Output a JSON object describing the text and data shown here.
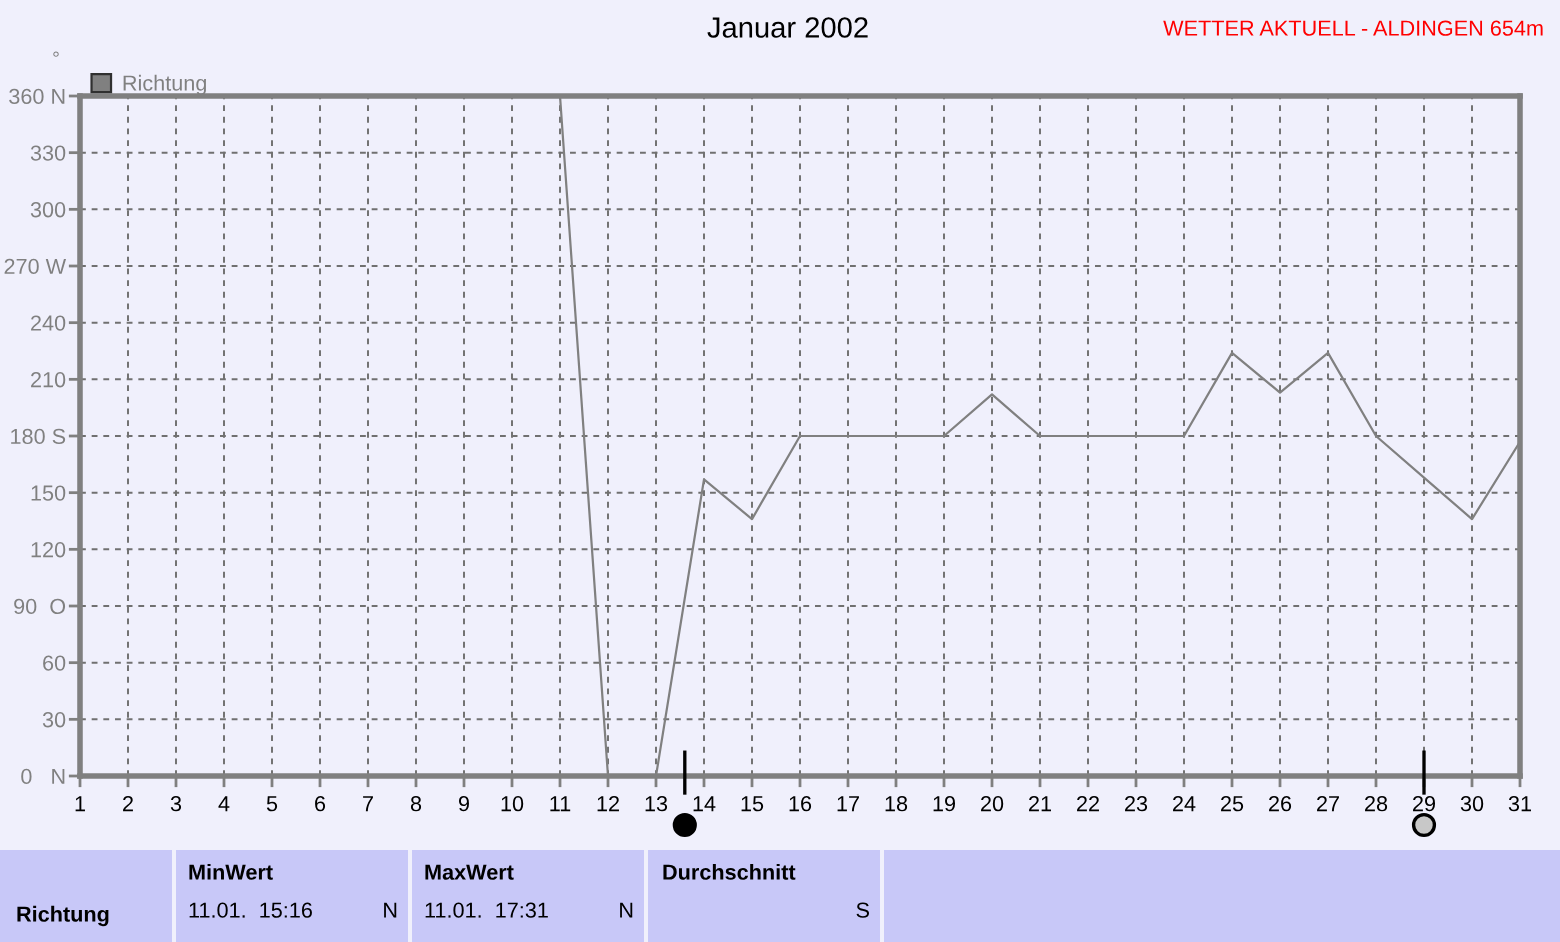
{
  "chart_data": {
    "type": "line",
    "title": "Januar 2002",
    "ylabel": "°",
    "annotations": [
      "WETTER AKTUELL - ALDINGEN 654m",
      "Richtung",
      "MinWert",
      "11.01.  15:16",
      "N",
      "MaxWert",
      "11.01.  17:31",
      "N",
      "Durchschnitt",
      "S"
    ],
    "x": [
      11,
      12,
      13,
      14,
      15,
      16,
      17,
      18,
      19,
      20,
      21,
      22,
      23,
      24,
      25,
      26,
      27,
      28,
      29,
      30,
      31
    ],
    "series": [
      {
        "name": "Richtung",
        "color": "#808080",
        "values": [
          360,
          0,
          0,
          157,
          136,
          180,
          180,
          180,
          180,
          202,
          180,
          180,
          180,
          180,
          224,
          203,
          224,
          180,
          158,
          136,
          177
        ]
      }
    ],
    "xlim": [
      1,
      31
    ],
    "xticks": [
      1,
      2,
      3,
      4,
      5,
      6,
      7,
      8,
      9,
      10,
      11,
      12,
      13,
      14,
      15,
      16,
      17,
      18,
      19,
      20,
      21,
      22,
      23,
      24,
      25,
      26,
      27,
      28,
      29,
      30,
      31
    ],
    "ylim": [
      0,
      360
    ],
    "yticks": [
      {
        "value": 0,
        "label": "0   N"
      },
      30,
      60,
      {
        "value": 90,
        "label": "90  O"
      },
      120,
      150,
      {
        "value": 180,
        "label": "180 S"
      },
      210,
      240,
      {
        "value": 270,
        "label": "270 W"
      },
      300,
      330,
      {
        "value": 360,
        "label": "360 N"
      }
    ],
    "grid": true,
    "legend": "top left",
    "line_style": "solid"
  }
}
